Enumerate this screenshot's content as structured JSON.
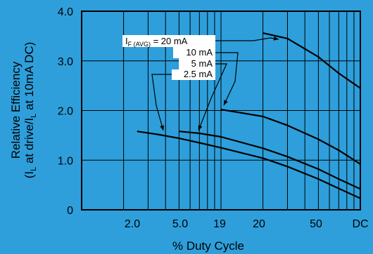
{
  "chart_data": {
    "type": "line",
    "xlabel": "% Duty Cycle",
    "ylabel": [
      "Relative Efficiency",
      "(I",
      "L",
      " at drive/I",
      "L",
      " at 10mA DC)"
    ],
    "ylim": [
      0,
      4.0
    ],
    "x_tick_labels": [
      "2.0",
      "5.0",
      "19",
      "20",
      "50",
      "DC"
    ],
    "y_tick_labels": [
      "0",
      "1.0",
      "2.0",
      "3.0",
      "4.0"
    ],
    "x_scale": "log",
    "grid": true,
    "series": [
      {
        "name": "20 mA",
        "x": [
          20,
          30,
          50,
          70,
          100
        ],
        "y": [
          3.56,
          3.45,
          3.08,
          2.75,
          2.45
        ]
      },
      {
        "name": "10 mA",
        "x": [
          10,
          20,
          30,
          50,
          70,
          100
        ],
        "y": [
          2.02,
          1.88,
          1.7,
          1.42,
          1.2,
          0.92
        ]
      },
      {
        "name": "5 mA",
        "x": [
          5,
          7,
          10,
          20,
          30,
          50,
          70,
          100
        ],
        "y": [
          1.58,
          1.54,
          1.47,
          1.24,
          1.07,
          0.82,
          0.62,
          0.42
        ]
      },
      {
        "name": "2.5 mA",
        "x": [
          2.5,
          3.5,
          5,
          7,
          10,
          20,
          30,
          50,
          70,
          100
        ],
        "y": [
          1.58,
          1.52,
          1.44,
          1.35,
          1.25,
          1.04,
          0.87,
          0.62,
          0.43,
          0.23
        ]
      }
    ],
    "legend": {
      "prefix": "I",
      "sub": "F (AVG)",
      "first_rest": " = 20 mA",
      "entries": [
        "10 mA",
        "5 mA",
        "2.5 mA"
      ]
    }
  }
}
